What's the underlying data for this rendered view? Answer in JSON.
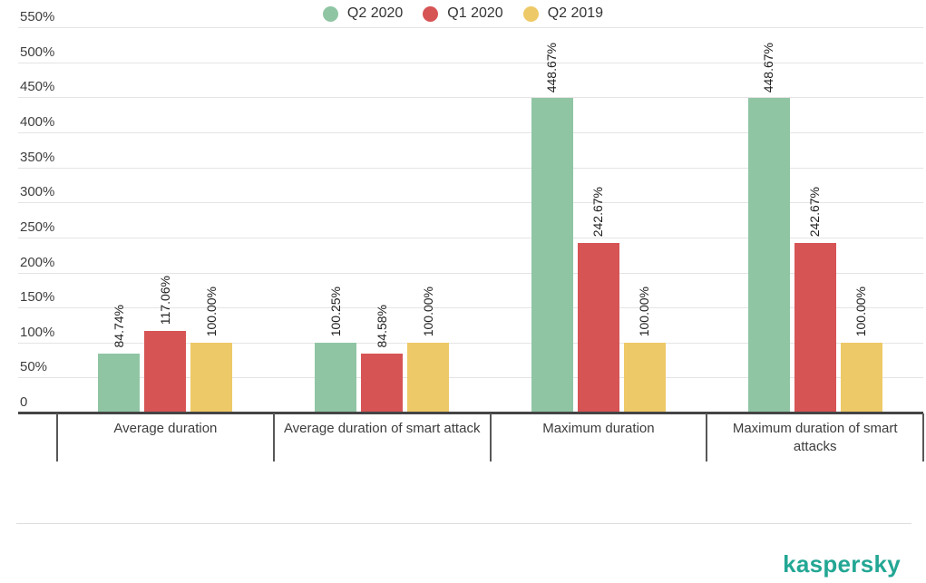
{
  "chart_data": {
    "type": "bar",
    "categories": [
      "Average duration",
      "Average duration of smart attack",
      "Maximum duration",
      "Maximum duration of smart attacks"
    ],
    "series": [
      {
        "name": "Q2 2020",
        "color": "#90c5a4",
        "values": [
          84.74,
          100.25,
          448.67,
          448.67
        ]
      },
      {
        "name": "Q1 2020",
        "color": "#d75455",
        "values": [
          117.06,
          84.58,
          242.67,
          242.67
        ]
      },
      {
        "name": "Q2 2019",
        "color": "#eec967",
        "values": [
          100.0,
          100.0,
          100.0,
          100.0
        ]
      }
    ],
    "value_labels": [
      [
        "84.74%",
        "117.06%",
        "100.00%"
      ],
      [
        "100.25%",
        "84.58%",
        "100.00%"
      ],
      [
        "448.67%",
        "242.67%",
        "100.00%"
      ],
      [
        "448.67%",
        "242.67%",
        "100.00%"
      ]
    ],
    "title": "",
    "xlabel": "",
    "ylabel": "",
    "ylim": [
      0,
      550
    ],
    "yticks": [
      "0",
      "50%",
      "100%",
      "150%",
      "200%",
      "250%",
      "300%",
      "350%",
      "400%",
      "450%",
      "500%",
      "550%"
    ],
    "grid": true,
    "legend_position": "bottom"
  },
  "legend": {
    "items": [
      {
        "label": "Q2 2020",
        "color": "#90c5a4"
      },
      {
        "label": "Q1 2020",
        "color": "#d75455"
      },
      {
        "label": "Q2 2019",
        "color": "#eec967"
      }
    ]
  },
  "branding": {
    "logo_text": "kaspersky",
    "logo_color": "#23a794"
  },
  "colors": {
    "gridline": "#e4e4e4",
    "axis": "#454545",
    "tick_text": "#3f3f3f",
    "bar_label_text": "#1d1d1d",
    "background": "#ffffff"
  }
}
